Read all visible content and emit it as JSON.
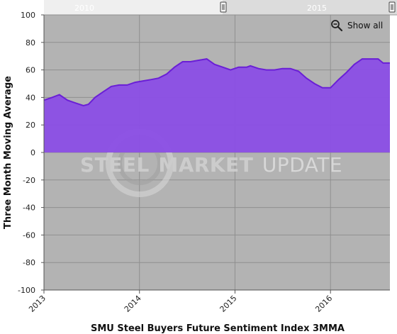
{
  "navigator": {
    "labels": [
      "2010",
      "2015"
    ]
  },
  "controls": {
    "show_all_label": "Show all",
    "zoom_icon": "magnifier-minus-icon"
  },
  "watermark": {
    "bold": "STEEL",
    "mid": "MARKET",
    "light": "UPDATE"
  },
  "colors": {
    "plot_bg": "#b3b3b3",
    "area_fill": "#8b4ee6",
    "line": "#6a1fd6",
    "grid": "#8f8f8f"
  },
  "chart_data": {
    "type": "area",
    "title": "SMU Steel Buyers Future Sentiment Index 3MMA",
    "xlabel": "SMU Steel Buyers Future Sentiment Index 3MMA",
    "ylabel": "Three Month Moving Average",
    "ylim": [
      -100,
      100
    ],
    "yticks": [
      -100,
      -80,
      -60,
      -40,
      -20,
      0,
      20,
      40,
      60,
      80,
      100
    ],
    "xticks": [
      "2013",
      "2014",
      "2015",
      "2016"
    ],
    "xlim": [
      "2013-01-01",
      "2016-08-15"
    ],
    "grid": true,
    "series": [
      {
        "values": [
          {
            "x": "2013-01-01",
            "y": 38
          },
          {
            "x": "2013-02-01",
            "y": 40
          },
          {
            "x": "2013-03-01",
            "y": 42
          },
          {
            "x": "2013-04-01",
            "y": 38
          },
          {
            "x": "2013-05-01",
            "y": 36
          },
          {
            "x": "2013-06-01",
            "y": 34
          },
          {
            "x": "2013-06-20",
            "y": 35
          },
          {
            "x": "2013-07-15",
            "y": 40
          },
          {
            "x": "2013-08-15",
            "y": 44
          },
          {
            "x": "2013-09-15",
            "y": 48
          },
          {
            "x": "2013-10-15",
            "y": 49
          },
          {
            "x": "2013-11-15",
            "y": 49
          },
          {
            "x": "2013-12-15",
            "y": 51
          },
          {
            "x": "2014-01-15",
            "y": 52
          },
          {
            "x": "2014-02-15",
            "y": 53
          },
          {
            "x": "2014-03-15",
            "y": 54
          },
          {
            "x": "2014-04-15",
            "y": 57
          },
          {
            "x": "2014-05-15",
            "y": 62
          },
          {
            "x": "2014-06-15",
            "y": 66
          },
          {
            "x": "2014-07-15",
            "y": 66
          },
          {
            "x": "2014-08-15",
            "y": 67
          },
          {
            "x": "2014-09-15",
            "y": 68
          },
          {
            "x": "2014-10-15",
            "y": 64
          },
          {
            "x": "2014-11-15",
            "y": 62
          },
          {
            "x": "2014-12-15",
            "y": 60
          },
          {
            "x": "2015-01-15",
            "y": 62
          },
          {
            "x": "2015-02-15",
            "y": 62
          },
          {
            "x": "2015-03-01",
            "y": 63
          },
          {
            "x": "2015-04-01",
            "y": 61
          },
          {
            "x": "2015-05-01",
            "y": 60
          },
          {
            "x": "2015-06-01",
            "y": 60
          },
          {
            "x": "2015-07-01",
            "y": 61
          },
          {
            "x": "2015-08-01",
            "y": 61
          },
          {
            "x": "2015-09-01",
            "y": 59
          },
          {
            "x": "2015-10-01",
            "y": 54
          },
          {
            "x": "2015-11-01",
            "y": 50
          },
          {
            "x": "2015-12-01",
            "y": 47
          },
          {
            "x": "2016-01-01",
            "y": 47
          },
          {
            "x": "2016-02-01",
            "y": 53
          },
          {
            "x": "2016-03-01",
            "y": 58
          },
          {
            "x": "2016-04-01",
            "y": 64
          },
          {
            "x": "2016-05-01",
            "y": 68
          },
          {
            "x": "2016-06-01",
            "y": 68
          },
          {
            "x": "2016-07-01",
            "y": 68
          },
          {
            "x": "2016-07-20",
            "y": 65
          },
          {
            "x": "2016-08-15",
            "y": 65
          }
        ]
      }
    ]
  }
}
